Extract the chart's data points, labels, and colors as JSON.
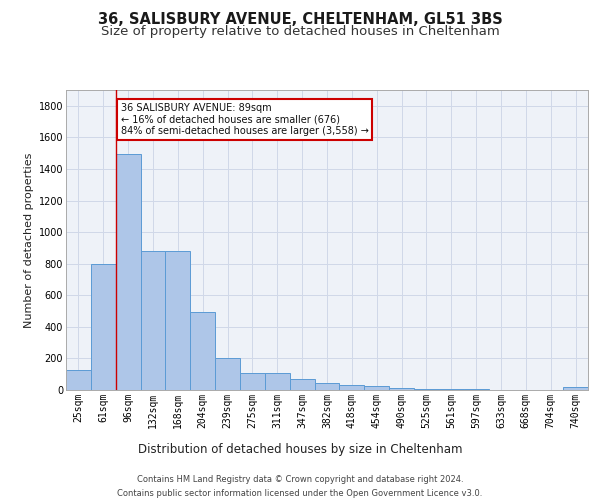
{
  "title1": "36, SALISBURY AVENUE, CHELTENHAM, GL51 3BS",
  "title2": "Size of property relative to detached houses in Cheltenham",
  "xlabel": "Distribution of detached houses by size in Cheltenham",
  "ylabel": "Number of detached properties",
  "categories": [
    "25sqm",
    "61sqm",
    "96sqm",
    "132sqm",
    "168sqm",
    "204sqm",
    "239sqm",
    "275sqm",
    "311sqm",
    "347sqm",
    "382sqm",
    "418sqm",
    "454sqm",
    "490sqm",
    "525sqm",
    "561sqm",
    "597sqm",
    "633sqm",
    "668sqm",
    "704sqm",
    "740sqm"
  ],
  "values": [
    127,
    800,
    1492,
    878,
    878,
    492,
    200,
    109,
    109,
    68,
    45,
    30,
    27,
    10,
    5,
    5,
    5,
    2,
    2,
    2,
    18
  ],
  "bar_color": "#aec6e8",
  "bar_edge_color": "#5b9bd5",
  "grid_color": "#d0d8e8",
  "background_color": "#eef2f8",
  "annotation_text": "36 SALISBURY AVENUE: 89sqm\n← 16% of detached houses are smaller (676)\n84% of semi-detached houses are larger (3,558) →",
  "annotation_box_color": "#ffffff",
  "annotation_border_color": "#cc0000",
  "footnote": "Contains HM Land Registry data © Crown copyright and database right 2024.\nContains public sector information licensed under the Open Government Licence v3.0.",
  "ylim": [
    0,
    1900
  ],
  "title_fontsize": 10.5,
  "subtitle_fontsize": 9.5,
  "xlabel_fontsize": 8.5,
  "ylabel_fontsize": 8,
  "tick_fontsize": 7,
  "footnote_fontsize": 6,
  "annotation_fontsize": 7
}
